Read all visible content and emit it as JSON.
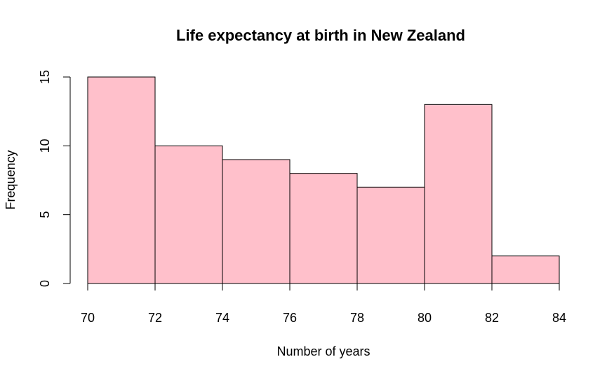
{
  "chart_data": {
    "type": "bar",
    "title": "Life expectancy at birth in New Zealand",
    "xlabel": "Number of years",
    "ylabel": "Frequency",
    "bins": [
      {
        "from": 70,
        "to": 72,
        "count": 15
      },
      {
        "from": 72,
        "to": 74,
        "count": 10
      },
      {
        "from": 74,
        "to": 76,
        "count": 9
      },
      {
        "from": 76,
        "to": 78,
        "count": 8
      },
      {
        "from": 78,
        "to": 80,
        "count": 7
      },
      {
        "from": 80,
        "to": 82,
        "count": 13
      },
      {
        "from": 82,
        "to": 84,
        "count": 2
      }
    ],
    "xlim": [
      70,
      84
    ],
    "ylim": [
      0,
      15
    ],
    "x_ticks": [
      "70",
      "72",
      "74",
      "76",
      "78",
      "80",
      "82",
      "84"
    ],
    "y_ticks": [
      "0",
      "5",
      "10",
      "15"
    ],
    "bar_color": "#ffc0cb",
    "grid": false,
    "legend": "none"
  }
}
